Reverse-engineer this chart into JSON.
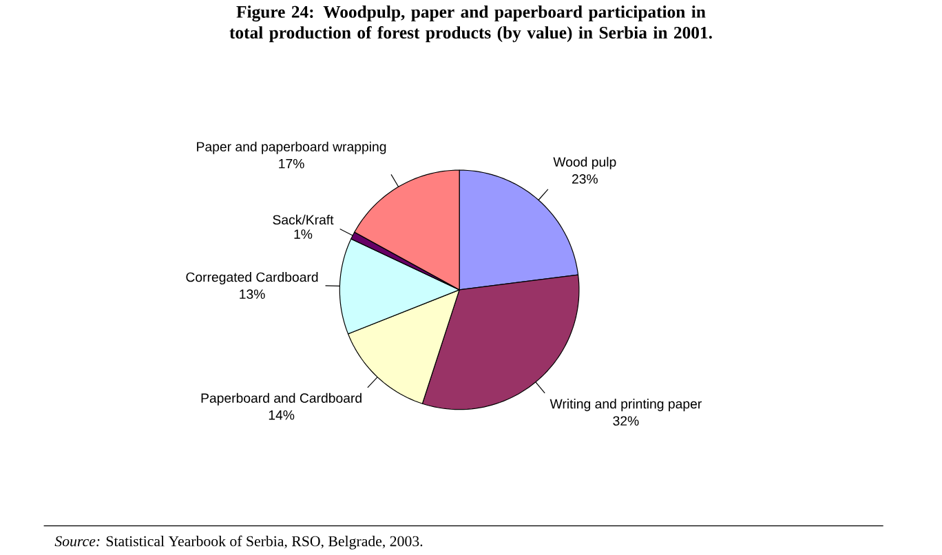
{
  "chart_data": {
    "type": "pie",
    "title": "Figure 24: Woodpulp, paper and paperboard participation in total production of forest products (by value) in Serbia in 2001.",
    "categories": [
      "Wood pulp",
      "Writing and printing paper",
      "Paperboard and Cardboard",
      "Corregated Cardboard",
      "Sack/Kraft",
      "Paper and paperboard wrapping"
    ],
    "values": [
      23,
      32,
      14,
      13,
      1,
      17
    ],
    "value_labels": [
      "23%",
      "32%",
      "14%",
      "13%",
      "1%",
      "17%"
    ],
    "colors": [
      "#9999ff",
      "#993366",
      "#ffffcc",
      "#ccffff",
      "#660066",
      "#ff8080"
    ],
    "annotations": [
      "*Source:* Statistical Yearbook of Serbia, RSO, Belgrade, 2003."
    ]
  }
}
